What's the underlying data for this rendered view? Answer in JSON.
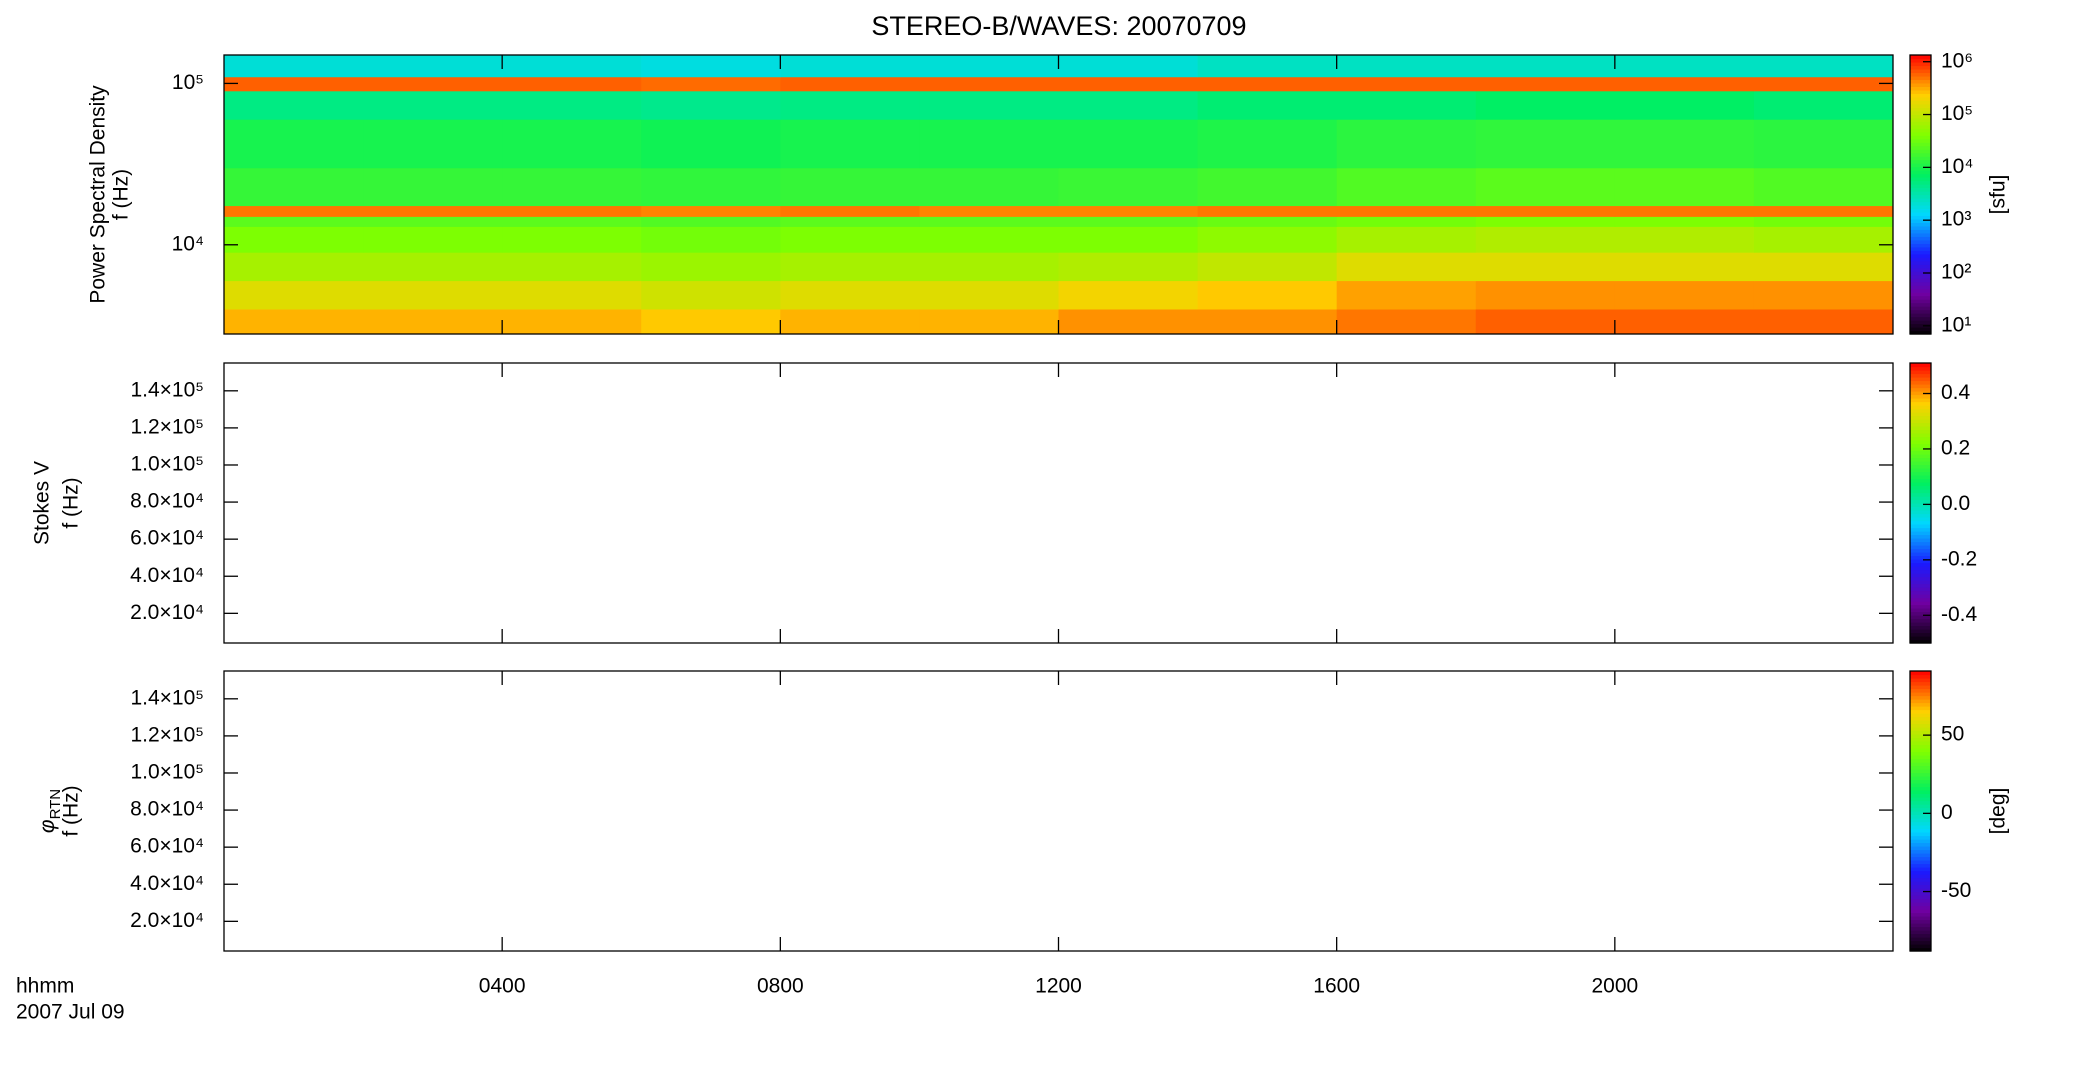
{
  "chart_data": [
    {
      "type": "heatmap",
      "title": "STEREO-B/WAVES: 20070709",
      "ylabel": "Power Spectral Density",
      "ylabel2": "f (Hz)",
      "ylog": true,
      "ylim": [
        2800,
        150000
      ],
      "yticks": [
        {
          "value": 10000,
          "label": "10⁴"
        },
        {
          "value": 100000,
          "label": "10⁵"
        }
      ],
      "xlim": [
        0,
        24
      ],
      "x_bins": [
        0,
        2,
        4,
        6,
        8,
        10,
        12,
        14,
        16,
        18,
        20,
        22,
        24
      ],
      "y_bins": [
        2800,
        4000,
        6000,
        9000,
        13000,
        15000,
        17500,
        30000,
        60000,
        90000,
        110000,
        150000
      ],
      "z": [
        [
          300000,
          300000,
          300000,
          250000,
          300000,
          300000,
          400000,
          400000,
          500000,
          600000,
          600000,
          600000
        ],
        [
          150000,
          150000,
          150000,
          120000,
          150000,
          150000,
          200000,
          250000,
          350000,
          400000,
          400000,
          400000
        ],
        [
          70000,
          70000,
          70000,
          60000,
          70000,
          70000,
          80000,
          100000,
          150000,
          150000,
          150000,
          150000
        ],
        [
          40000,
          40000,
          40000,
          35000,
          40000,
          40000,
          40000,
          50000,
          70000,
          80000,
          80000,
          70000
        ],
        [
          25000,
          25000,
          25000,
          22000,
          25000,
          25000,
          25000,
          30000,
          35000,
          40000,
          40000,
          35000
        ],
        [
          500000,
          500000,
          500000,
          450000,
          500000,
          450000,
          450000,
          500000,
          500000,
          500000,
          500000,
          500000
        ],
        [
          15000,
          15000,
          15000,
          14000,
          15000,
          15000,
          16000,
          18000,
          22000,
          25000,
          25000,
          22000
        ],
        [
          10000,
          10000,
          10000,
          9000,
          10000,
          10000,
          10000,
          11000,
          13000,
          14000,
          14000,
          13000
        ],
        [
          5000,
          5000,
          5000,
          4500,
          5000,
          5000,
          5000,
          6000,
          6000,
          7000,
          7000,
          6000
        ],
        [
          600000,
          600000,
          600000,
          550000,
          600000,
          600000,
          600000,
          600000,
          600000,
          600000,
          600000,
          600000
        ],
        [
          2000,
          2000,
          2000,
          1800,
          2000,
          2000,
          2000,
          2500,
          2500,
          2500,
          2500,
          2500
        ]
      ],
      "zlog": true,
      "zlim": [
        7,
        1340000
      ],
      "zticks": [
        {
          "value": 10,
          "label": "10¹"
        },
        {
          "value": 100,
          "label": "10²"
        },
        {
          "value": 1000,
          "label": "10³"
        },
        {
          "value": 10000,
          "label": "10⁴"
        },
        {
          "value": 100000,
          "label": "10⁵"
        },
        {
          "value": 1000000,
          "label": "10⁶"
        }
      ],
      "zlabel": "[sfu]",
      "colormap": [
        "#000000",
        "#7000a0",
        "#1a1aff",
        "#00d8ff",
        "#00f060",
        "#80ff00",
        "#ffd000",
        "#ff0000"
      ]
    },
    {
      "type": "heatmap",
      "ylabel": "Stokes V",
      "ylabel2": "f (Hz)",
      "ylim": [
        4000,
        155000
      ],
      "yticks": [
        {
          "value": 20000,
          "label": "2.0×10⁴"
        },
        {
          "value": 40000,
          "label": "4.0×10⁴"
        },
        {
          "value": 60000,
          "label": "6.0×10⁴"
        },
        {
          "value": 80000,
          "label": "8.0×10⁴"
        },
        {
          "value": 100000,
          "label": "1.0×10⁵"
        },
        {
          "value": 120000,
          "label": "1.2×10⁵"
        },
        {
          "value": 140000,
          "label": "1.4×10⁵"
        }
      ],
      "xlim": [
        0,
        24
      ],
      "zlim": [
        -0.5,
        0.51
      ],
      "zticks": [
        -0.4,
        -0.2,
        {
          "value": 0,
          "label": "0.0"
        },
        0.2,
        0.4
      ],
      "colormap": [
        "#000000",
        "#7000a0",
        "#1a1aff",
        "#00d8ff",
        "#00f060",
        "#80ff00",
        "#ffd000",
        "#ff0000"
      ]
    },
    {
      "type": "heatmap",
      "ylabel_symbol": "φ",
      "ylabel_sub": "RTN",
      "ylabel2": "f (Hz)",
      "ylim": [
        4000,
        155000
      ],
      "yticks": [
        {
          "value": 20000,
          "label": "2.0×10⁴"
        },
        {
          "value": 40000,
          "label": "4.0×10⁴"
        },
        {
          "value": 60000,
          "label": "6.0×10⁴"
        },
        {
          "value": 80000,
          "label": "8.0×10⁴"
        },
        {
          "value": 100000,
          "label": "1.0×10⁵"
        },
        {
          "value": 120000,
          "label": "1.2×10⁵"
        },
        {
          "value": 140000,
          "label": "1.4×10⁵"
        }
      ],
      "xlim": [
        0,
        24
      ],
      "xticks": [
        {
          "value": 4,
          "label": "0400"
        },
        {
          "value": 8,
          "label": "0800"
        },
        {
          "value": 12,
          "label": "1200"
        },
        {
          "value": 16,
          "label": "1600"
        },
        {
          "value": 20,
          "label": "2000"
        }
      ],
      "xlabel": "hhmm",
      "date": "2007 Jul 09",
      "zlim": [
        -88,
        91
      ],
      "zticks": [
        -50,
        0,
        50
      ],
      "zlabel": "[deg]",
      "colormap": [
        "#000000",
        "#7000a0",
        "#1a1aff",
        "#00d8ff",
        "#00f060",
        "#80ff00",
        "#ffd000",
        "#ff0000"
      ]
    }
  ]
}
